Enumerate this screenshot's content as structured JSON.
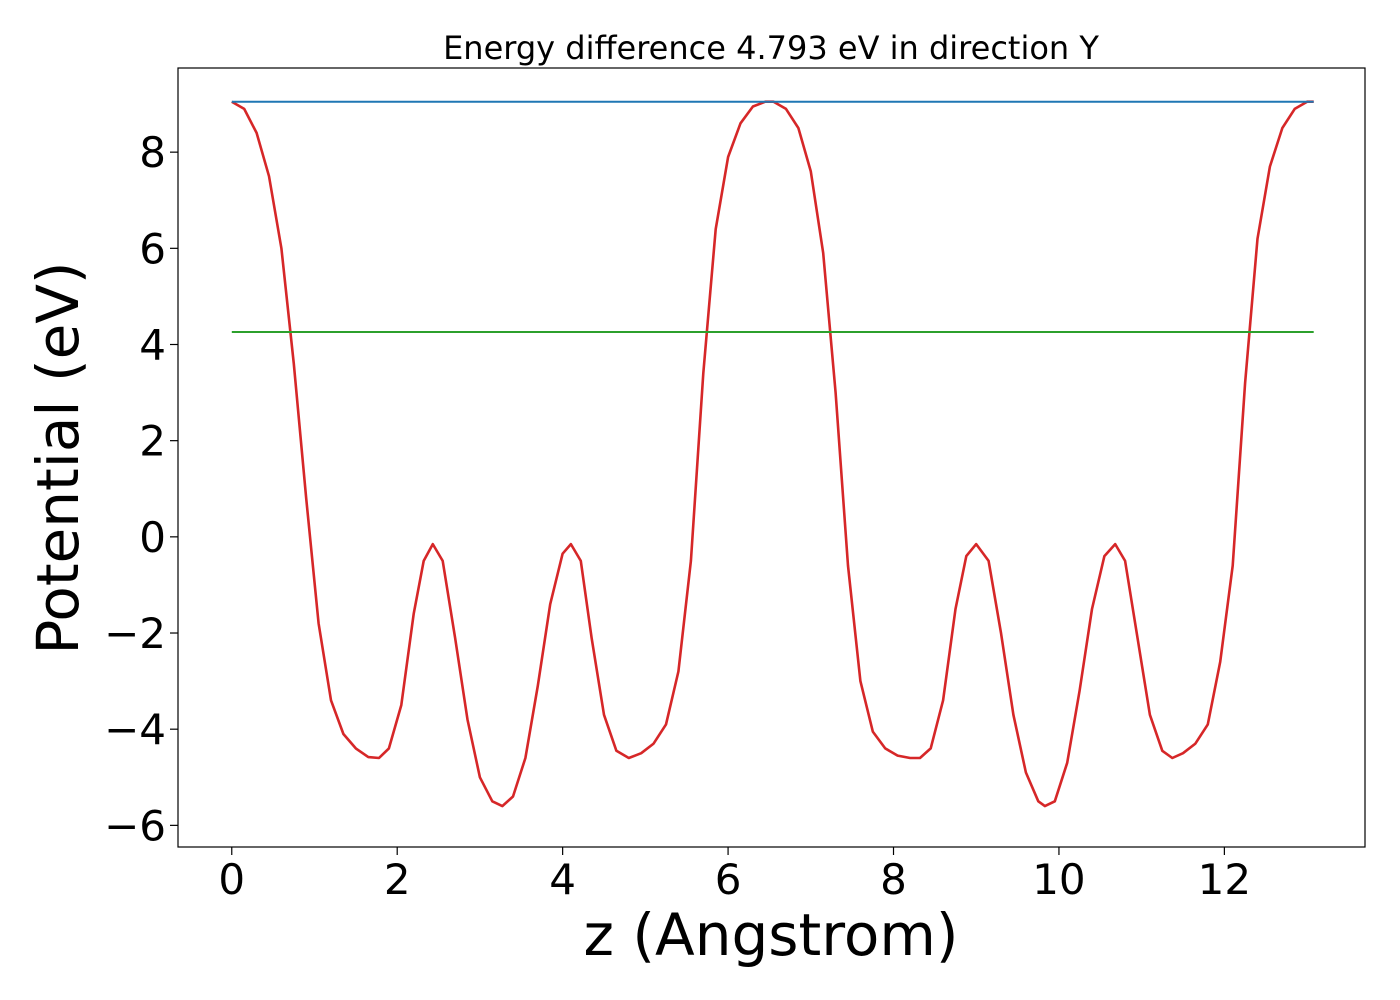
{
  "chart_data": {
    "type": "line",
    "title": "Energy difference 4.793 eV in direction Y",
    "xlabel": "z (Angstrom)",
    "ylabel": "Potential (eV)",
    "xlim": [
      -0.65,
      13.7
    ],
    "ylim": [
      -6.45,
      9.75
    ],
    "xticks": [
      {
        "value": 0,
        "label": "0"
      },
      {
        "value": 2,
        "label": "2"
      },
      {
        "value": 4,
        "label": "4"
      },
      {
        "value": 6,
        "label": "6"
      },
      {
        "value": 8,
        "label": "8"
      },
      {
        "value": 10,
        "label": "10"
      },
      {
        "value": 12,
        "label": "12"
      }
    ],
    "yticks": [
      {
        "value": 8,
        "label": "8"
      },
      {
        "value": 6,
        "label": "6"
      },
      {
        "value": 4,
        "label": "4"
      },
      {
        "value": 2,
        "label": "2"
      },
      {
        "value": 0,
        "label": "0"
      },
      {
        "value": -2,
        "label": "−2"
      },
      {
        "value": -4,
        "label": "−4"
      },
      {
        "value": -6,
        "label": "−6"
      }
    ],
    "grid": false,
    "legend": "none",
    "series": [
      {
        "color": "#d62728",
        "x": [
          0.0,
          0.15,
          0.3,
          0.45,
          0.6,
          0.75,
          0.9,
          1.05,
          1.2,
          1.35,
          1.5,
          1.65,
          1.78,
          1.9,
          2.05,
          2.2,
          2.32,
          2.43,
          2.55,
          2.7,
          2.85,
          3.0,
          3.15,
          3.27,
          3.4,
          3.55,
          3.7,
          3.85,
          4.0,
          4.1,
          4.22,
          4.35,
          4.5,
          4.65,
          4.8,
          4.95,
          5.1,
          5.25,
          5.4,
          5.55,
          5.7,
          5.85,
          6.0,
          6.15,
          6.3,
          6.45,
          6.55,
          6.7,
          6.85,
          7.0,
          7.15,
          7.3,
          7.45,
          7.6,
          7.75,
          7.9,
          8.05,
          8.2,
          8.32,
          8.45,
          8.6,
          8.75,
          8.88,
          9.0,
          9.15,
          9.3,
          9.45,
          9.6,
          9.75,
          9.83,
          9.95,
          10.1,
          10.25,
          10.4,
          10.55,
          10.68,
          10.8,
          10.95,
          11.1,
          11.25,
          11.37,
          11.5,
          11.65,
          11.8,
          11.95,
          12.1,
          12.25,
          12.4,
          12.55,
          12.7,
          12.85,
          13.0,
          13.08
        ],
        "values": [
          9.05,
          8.9,
          8.4,
          7.5,
          6.0,
          3.6,
          0.8,
          -1.8,
          -3.4,
          -4.1,
          -4.4,
          -4.58,
          -4.6,
          -4.4,
          -3.5,
          -1.6,
          -0.5,
          -0.15,
          -0.5,
          -2.1,
          -3.8,
          -5.0,
          -5.5,
          -5.6,
          -5.4,
          -4.6,
          -3.1,
          -1.4,
          -0.35,
          -0.15,
          -0.5,
          -2.1,
          -3.7,
          -4.45,
          -4.6,
          -4.5,
          -4.3,
          -3.9,
          -2.8,
          -0.5,
          3.4,
          6.4,
          7.9,
          8.6,
          8.95,
          9.05,
          9.05,
          8.9,
          8.5,
          7.6,
          5.9,
          3.0,
          -0.6,
          -3.0,
          -4.05,
          -4.4,
          -4.55,
          -4.6,
          -4.6,
          -4.4,
          -3.4,
          -1.5,
          -0.4,
          -0.15,
          -0.5,
          -2.0,
          -3.7,
          -4.9,
          -5.5,
          -5.6,
          -5.5,
          -4.7,
          -3.2,
          -1.5,
          -0.4,
          -0.15,
          -0.5,
          -2.1,
          -3.7,
          -4.45,
          -4.6,
          -4.5,
          -4.3,
          -3.9,
          -2.6,
          -0.6,
          3.2,
          6.2,
          7.7,
          8.5,
          8.9,
          9.05,
          9.05
        ]
      },
      {
        "color": "#1f77b4",
        "x": [
          0.0,
          13.08
        ],
        "values": [
          9.05,
          9.05
        ]
      },
      {
        "color": "#2ca02c",
        "x": [
          0.0,
          13.08
        ],
        "values": [
          4.26,
          4.26
        ]
      }
    ]
  }
}
